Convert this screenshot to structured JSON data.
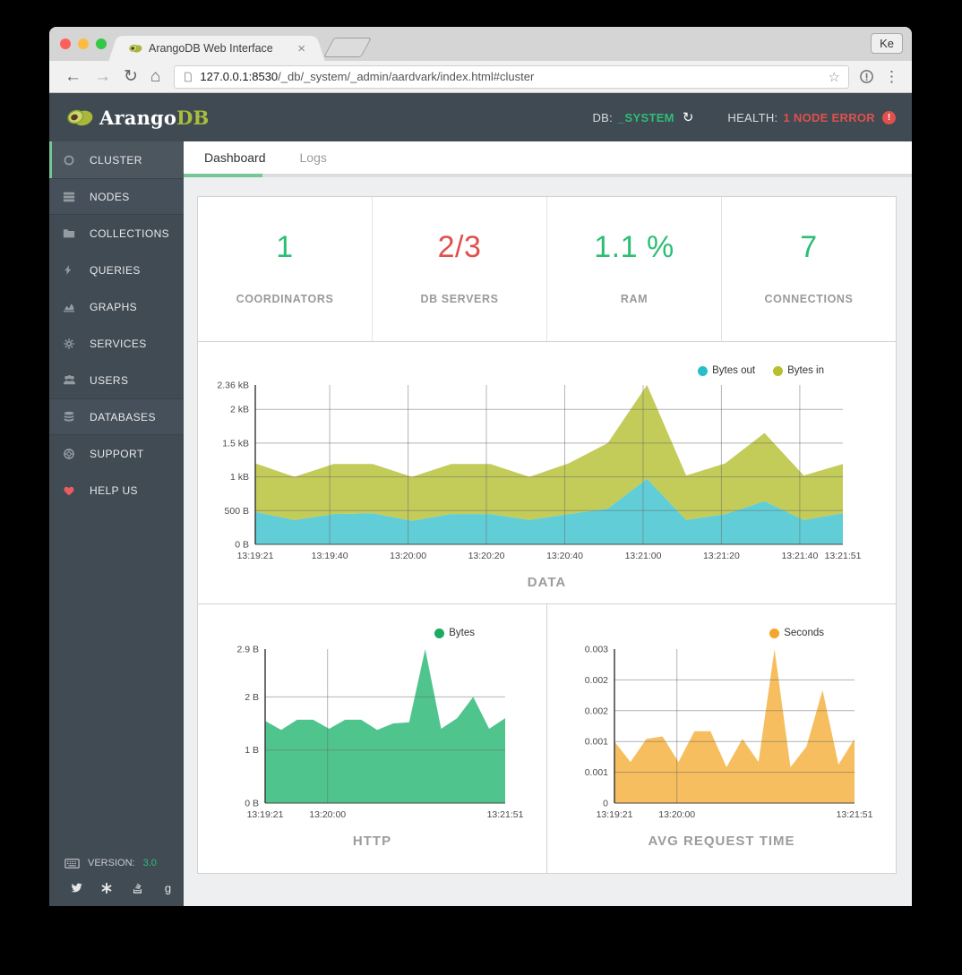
{
  "browser": {
    "tab_title": "ArangoDB Web Interface",
    "profile_label": "Ke",
    "url_host": "127.0.0.1:8530",
    "url_path": "/_db/_system/_admin/aardvark/index.html#cluster"
  },
  "glyphs": {
    "back": "←",
    "forward": "→",
    "reload": "↻",
    "home": "⌂",
    "star": "☆",
    "menu": "⋮",
    "close": "×",
    "db_refresh": "↻",
    "error": "!"
  },
  "header": {
    "logo_text_1": "Arango",
    "logo_text_2": "DB",
    "db_label": "DB:",
    "db_value": "_SYSTEM",
    "health_label": "HEALTH:",
    "health_value": "1 NODE ERROR"
  },
  "sidebar": {
    "items": [
      {
        "label": "CLUSTER",
        "icon": "cluster-icon",
        "active": true
      },
      {
        "label": "NODES",
        "icon": "nodes-icon",
        "grouped": true
      },
      {
        "label": "COLLECTIONS",
        "icon": "collections-icon"
      },
      {
        "label": "QUERIES",
        "icon": "queries-icon"
      },
      {
        "label": "GRAPHS",
        "icon": "graphs-icon"
      },
      {
        "label": "SERVICES",
        "icon": "services-icon"
      },
      {
        "label": "USERS",
        "icon": "users-icon"
      },
      {
        "label": "DATABASES",
        "icon": "databases-icon",
        "grouped": true
      },
      {
        "label": "SUPPORT",
        "icon": "support-icon"
      },
      {
        "label": "HELP US",
        "icon": "heart-icon"
      }
    ],
    "version_label": "VERSION:",
    "version_value": "3.0",
    "social": [
      {
        "icon": "twitter-icon"
      },
      {
        "icon": "slack-icon"
      },
      {
        "icon": "stackoverflow-icon"
      },
      {
        "icon": "google-icon"
      }
    ]
  },
  "tabs": [
    {
      "label": "Dashboard",
      "active": true
    },
    {
      "label": "Logs",
      "active": false
    }
  ],
  "cards": [
    {
      "value": "1",
      "label": "COORDINATORS",
      "color": "#2DBE76"
    },
    {
      "value": "2/3",
      "label": "DB SERVERS",
      "color": "#E0504D"
    },
    {
      "value": "1.1 %",
      "label": "RAM",
      "color": "#2DBE76"
    },
    {
      "value": "7",
      "label": "CONNECTIONS",
      "color": "#2DBE76"
    }
  ],
  "chart_data": [
    {
      "id": "data",
      "type": "area",
      "stacked": true,
      "title": "DATA",
      "x": [
        "13:19:21",
        "13:19:31",
        "13:19:41",
        "13:19:51",
        "13:20:01",
        "13:20:11",
        "13:20:21",
        "13:20:31",
        "13:20:41",
        "13:20:51",
        "13:21:01",
        "13:21:11",
        "13:21:21",
        "13:21:31",
        "13:21:41",
        "13:21:51"
      ],
      "series": [
        {
          "name": "Bytes out",
          "color": "#58CAD5",
          "dot": "#27BDC9",
          "values": [
            480,
            360,
            450,
            460,
            350,
            450,
            450,
            360,
            450,
            530,
            970,
            360,
            450,
            640,
            360,
            460
          ]
        },
        {
          "name": "Bytes in",
          "color": "#C0C850",
          "dot": "#B8BF2F",
          "values": [
            720,
            640,
            740,
            730,
            650,
            740,
            740,
            640,
            750,
            970,
            1390,
            660,
            750,
            1010,
            660,
            730
          ]
        }
      ],
      "ylim": [
        0,
        2360
      ],
      "yticks": [
        {
          "label": "0 B",
          "value": 0
        },
        {
          "label": "500 B",
          "value": 500,
          "grid": true
        },
        {
          "label": "1 kB",
          "value": 1000,
          "grid": true
        },
        {
          "label": "1.5 kB",
          "value": 1500,
          "grid": true
        },
        {
          "label": "2 kB",
          "value": 2000,
          "grid": true
        },
        {
          "label": "2.36 kB",
          "value": 2360
        }
      ],
      "xticks": [
        {
          "label": "13:19:21",
          "time": "13:19:21"
        },
        {
          "label": "13:19:40",
          "time": "13:19:40",
          "grid": true
        },
        {
          "label": "13:20:00",
          "time": "13:20:00",
          "grid": true
        },
        {
          "label": "13:20:20",
          "time": "13:20:20",
          "grid": true
        },
        {
          "label": "13:20:40",
          "time": "13:20:40",
          "grid": true
        },
        {
          "label": "13:21:00",
          "time": "13:21:00",
          "grid": true
        },
        {
          "label": "13:21:20",
          "time": "13:21:20",
          "grid": true
        },
        {
          "label": "13:21:40",
          "time": "13:21:40",
          "grid": true
        },
        {
          "label": "13:21:51",
          "time": "13:21:51"
        }
      ]
    },
    {
      "id": "http",
      "type": "area",
      "stacked": true,
      "title": "HTTP",
      "x": [
        "13:19:21",
        "13:19:31",
        "13:19:41",
        "13:19:51",
        "13:20:01",
        "13:20:11",
        "13:20:21",
        "13:20:31",
        "13:20:41",
        "13:20:51",
        "13:21:01",
        "13:21:11",
        "13:21:21",
        "13:21:31",
        "13:21:41",
        "13:21:51"
      ],
      "series": [
        {
          "name": "Bytes",
          "color": "#47C187",
          "dot": "#1CAB61",
          "values": [
            1.55,
            1.38,
            1.57,
            1.57,
            1.4,
            1.57,
            1.57,
            1.38,
            1.5,
            1.52,
            2.9,
            1.4,
            1.6,
            2.0,
            1.4,
            1.6
          ]
        }
      ],
      "ylim": [
        0,
        2.9
      ],
      "yticks": [
        {
          "label": "0 B",
          "value": 0
        },
        {
          "label": "1 B",
          "value": 1,
          "grid": true
        },
        {
          "label": "2 B",
          "value": 2,
          "grid": true
        },
        {
          "label": "2.9 B",
          "value": 2.9
        }
      ],
      "xticks": [
        {
          "label": "13:19:21",
          "time": "13:19:21"
        },
        {
          "label": "13:20:00",
          "time": "13:20:00",
          "grid": true
        },
        {
          "label": "13:21:51",
          "time": "13:21:51"
        }
      ]
    },
    {
      "id": "avg",
      "type": "area",
      "stacked": true,
      "title": "AVG REQUEST TIME",
      "x": [
        "13:19:21",
        "13:19:31",
        "13:19:41",
        "13:19:51",
        "13:20:01",
        "13:20:11",
        "13:20:21",
        "13:20:31",
        "13:20:41",
        "13:20:51",
        "13:21:01",
        "13:21:11",
        "13:21:21",
        "13:21:31",
        "13:21:41",
        "13:21:51"
      ],
      "series": [
        {
          "name": "Seconds",
          "color": "#F6BA55",
          "dot": "#F5A62A",
          "values": [
            0.0012,
            0.0008,
            0.00125,
            0.0013,
            0.0008,
            0.0014,
            0.0014,
            0.0007,
            0.00125,
            0.0008,
            0.003,
            0.0007,
            0.0011,
            0.0022,
            0.00075,
            0.00125
          ]
        }
      ],
      "ylim": [
        0,
        0.003
      ],
      "yticks": [
        {
          "label": "0",
          "value": 0
        },
        {
          "label": "0.001",
          "value": 0.0006,
          "grid": true
        },
        {
          "label": "0.001",
          "value": 0.0012,
          "grid": true
        },
        {
          "label": "0.002",
          "value": 0.0018,
          "grid": true
        },
        {
          "label": "0.002",
          "value": 0.0024,
          "grid": true
        },
        {
          "label": "0.003",
          "value": 0.003
        }
      ],
      "xticks": [
        {
          "label": "13:19:21",
          "time": "13:19:21"
        },
        {
          "label": "13:20:00",
          "time": "13:20:00",
          "grid": true
        },
        {
          "label": "13:21:51",
          "time": "13:21:51"
        }
      ]
    }
  ]
}
